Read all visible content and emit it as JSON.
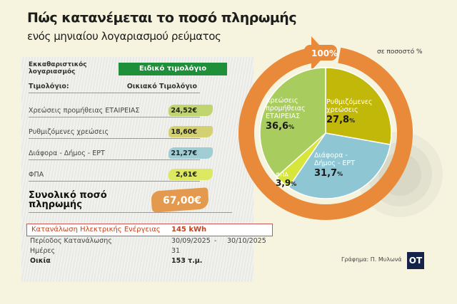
{
  "header": {
    "title": "Πώς κατανέμεται το ποσό πληρωμής",
    "subtitle": "ενός μηνιαίου λογαριασμού ρεύματος"
  },
  "table": {
    "account_label": "Εκκαθαριστικός λογαριασμός",
    "account_type": "Ειδικό τιμολόγιο",
    "tariff_label": "Τιμολόγιο:",
    "tariff_value": "Οικιακό Τιμολόγιο",
    "rows": [
      {
        "label": "Χρεώσεις προμήθειας ΕΤΑΙΡΕΙΑΣ",
        "value": "24,52€",
        "color": "#b7cf5a"
      },
      {
        "label": "Ρυθμιζόμενες χρεώσεις",
        "value": "18,60€",
        "color": "#cfcb5e"
      },
      {
        "label": "Διάφορα - Δήμος - ΕΡΤ",
        "value": "21,27€",
        "color": "#93c8d0"
      },
      {
        "label": "ΦΠΑ",
        "value": "2,61€",
        "color": "#d9e84a"
      }
    ],
    "total_label": "Συνολικό ποσό πληρωμής",
    "total_value": "67,00€",
    "consumption_label": "Κατανάλωση Ηλεκτρικής Ενέργειας",
    "consumption_value": "145 kWh",
    "period_label": "Περίοδος Κατανάλωσης",
    "period_from": "30/09/2025",
    "period_sep": "-",
    "period_to": "30/10/2025",
    "days_label": "Ημέρες",
    "days_value": "31",
    "home_label": "Οικία",
    "home_value": "153 τ.μ."
  },
  "chart_data": {
    "type": "pie",
    "unit_note": "σε ποσοστό %",
    "total_label": "100%",
    "slices": [
      {
        "name": "Ρυθμιζόμενες χρεώσεις",
        "value": 27.8,
        "label": "27,8",
        "color": "#c2b80a"
      },
      {
        "name": "Διάφορα - Δήμος - ΕΡΤ",
        "value": 31.7,
        "label": "31,7",
        "color": "#8ec7d3"
      },
      {
        "name": "ΦΠΑ",
        "value": 3.9,
        "label": "3,9",
        "color": "#d6e63a"
      },
      {
        "name": "Χρεώσεις προμήθειας ΕΤΑΙΡΕΙΑΣ",
        "value": 36.6,
        "label": "36,6",
        "color": "#a9cc5e"
      }
    ],
    "percent_sign": "%",
    "ring_color": "#e88a3a"
  },
  "footer": {
    "credit": "Γράφημα: Π. Μυλωνά",
    "logo": "OT"
  }
}
